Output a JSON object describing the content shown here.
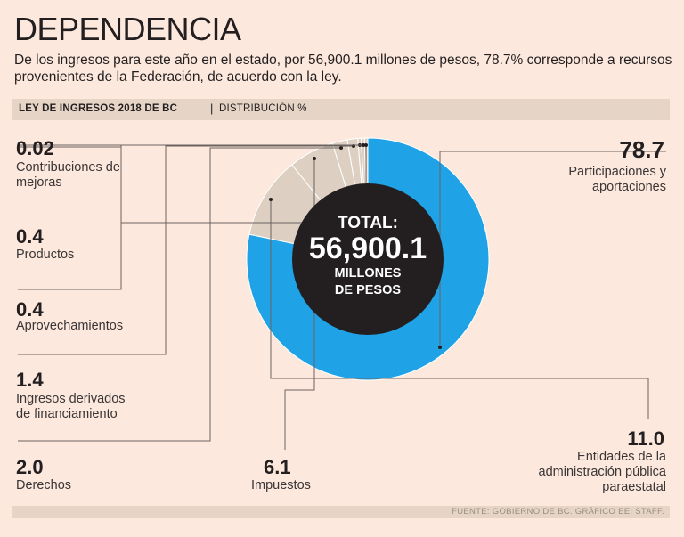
{
  "header": {
    "title": "DEPENDENCIA",
    "subtitle": "De los ingresos para este año en el estado, por 56,900.1 millones de pesos, 78.7% corresponde a recursos provenientes de la Federación, de acuerdo con la ley."
  },
  "section": {
    "label": "LEY DE INGRESOS 2018 DE BC",
    "separator": "|",
    "sublabel": "DISTRIBUCIÓN %"
  },
  "center": {
    "line1": "TOTAL:",
    "line2": "56,900.1",
    "line3": "MILLONES",
    "line4": "DE PESOS"
  },
  "footer": {
    "source": "FUENTE: GOBIERNO DE BC. GRÁFICO EE: STAFF."
  },
  "colors": {
    "background": "#fce8dc",
    "main_slice": "#1fa3e6",
    "other_slices": "#ddd0c2",
    "center": "#231f20"
  },
  "chart_data": {
    "type": "pie",
    "title": "LEY DE INGRESOS 2018 DE BC",
    "unit": "%",
    "total_label": "TOTAL: 56,900.1 MILLONES DE PESOS",
    "slices": [
      {
        "label": "Participaciones y aportaciones",
        "value": 78.7,
        "display": "78.7"
      },
      {
        "label": "Entidades de la administración pública paraestatal",
        "value": 11.0,
        "display": "11.0"
      },
      {
        "label": "Impuestos",
        "value": 6.1,
        "display": "6.1"
      },
      {
        "label": "Derechos",
        "value": 2.0,
        "display": "2.0"
      },
      {
        "label": "Ingresos derivados de financiamiento",
        "value": 1.4,
        "display": "1.4"
      },
      {
        "label": "Aprovechamientos",
        "value": 0.4,
        "display": "0.4"
      },
      {
        "label": "Productos",
        "value": 0.4,
        "display": "0.4"
      },
      {
        "label": "Contribuciones de mejoras",
        "value": 0.02,
        "display": "0.02"
      }
    ]
  }
}
